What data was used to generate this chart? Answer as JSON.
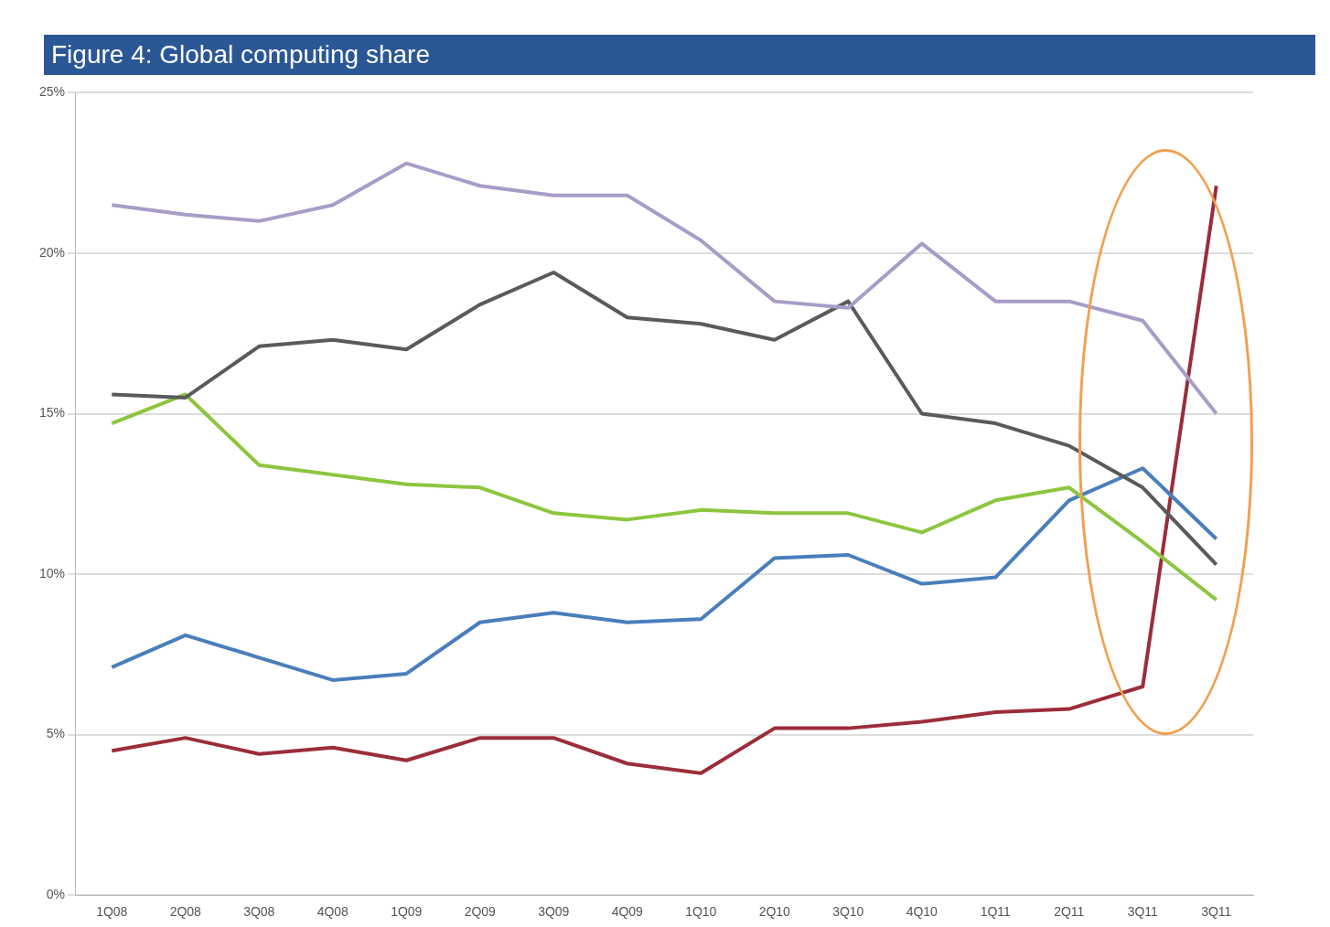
{
  "chart_data": {
    "type": "line",
    "title": "Figure 4: Global computing share",
    "categories": [
      "1Q08",
      "2Q08",
      "3Q08",
      "4Q08",
      "1Q09",
      "2Q09",
      "3Q09",
      "4Q09",
      "1Q10",
      "2Q10",
      "3Q10",
      "4Q10",
      "1Q11",
      "2Q11",
      "3Q11",
      "3Q11"
    ],
    "series": [
      {
        "color": "#a89cc8",
        "values": [
          21.5,
          21.2,
          21.0,
          21.5,
          22.8,
          22.1,
          21.8,
          21.8,
          20.4,
          18.5,
          18.3,
          20.3,
          18.5,
          18.5,
          17.9,
          15.0
        ]
      },
      {
        "color": "#5a5a5a",
        "values": [
          15.6,
          15.5,
          17.1,
          17.3,
          17.0,
          18.4,
          19.4,
          18.0,
          17.8,
          17.3,
          18.5,
          15.0,
          14.7,
          14.0,
          12.7,
          10.3
        ]
      },
      {
        "color": "#8cc63f",
        "values": [
          14.7,
          15.6,
          13.4,
          13.1,
          12.8,
          12.7,
          11.9,
          11.7,
          12.0,
          11.9,
          11.9,
          11.3,
          12.3,
          12.7,
          11.0,
          9.2
        ]
      },
      {
        "color": "#4a7ebb",
        "values": [
          7.1,
          8.1,
          7.4,
          6.7,
          6.9,
          8.5,
          8.8,
          8.5,
          8.6,
          10.5,
          10.6,
          9.7,
          9.9,
          12.3,
          13.3,
          11.1
        ]
      },
      {
        "color": "#9b2d3a",
        "values": [
          4.5,
          4.9,
          4.4,
          4.6,
          4.2,
          4.9,
          4.9,
          4.1,
          3.8,
          5.2,
          5.2,
          5.4,
          5.7,
          5.8,
          6.5,
          22.1
        ]
      }
    ],
    "ylim": [
      0,
      25
    ],
    "yticks": [
      {
        "value": 0,
        "label": "0%"
      },
      {
        "value": 5,
        "label": "5%"
      },
      {
        "value": 10,
        "label": "10%"
      },
      {
        "value": 15,
        "label": "15%"
      },
      {
        "value": 20,
        "label": "20%"
      },
      {
        "value": 25,
        "label": "25%"
      }
    ],
    "grid": "y",
    "legend": false,
    "marker": "none",
    "line_style": "solid"
  }
}
